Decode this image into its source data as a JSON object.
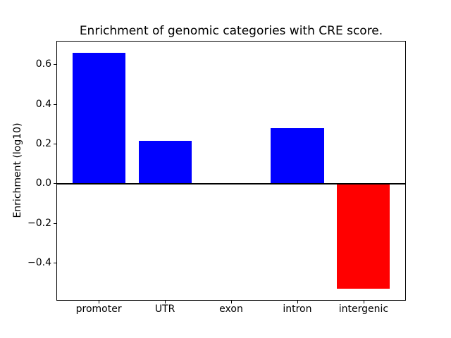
{
  "chart_data": {
    "type": "bar",
    "title": "Enrichment of genomic categories with CRE score.",
    "xlabel": "",
    "ylabel": "Enrichment (log10)",
    "categories": [
      "promoter",
      "UTR",
      "exon",
      "intron",
      "intergenic"
    ],
    "values": [
      0.66,
      0.215,
      0.0,
      0.28,
      -0.53
    ],
    "bar_colors": [
      "#0000ff",
      "#0000ff",
      "#0000ff",
      "#0000ff",
      "#ff0000"
    ],
    "positive_color": "#0000ff",
    "negative_color": "#ff0000",
    "bar_width_fraction": 0.8,
    "ylim": [
      -0.59,
      0.72
    ],
    "xlim": [
      -0.64,
      4.64
    ],
    "yticks": [
      0.6,
      0.4,
      0.2,
      0.0,
      -0.2,
      -0.4
    ],
    "ytick_labels": [
      "0.6",
      "0.4",
      "0.2",
      "0.0",
      "−0.2",
      "−0.4"
    ],
    "zero_line": true,
    "grid": false,
    "legend": "none",
    "background_color": "#ffffff",
    "axis_color": "#000000"
  }
}
